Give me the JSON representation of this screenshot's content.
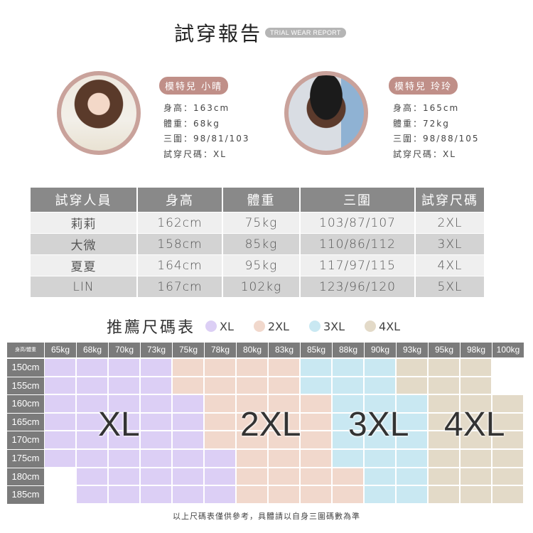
{
  "title": "試穿報告",
  "title_badge": "TRIAL WEAR REPORT",
  "models": [
    {
      "name": "模特兒 小晴",
      "height": "身高：163cm",
      "weight": "體重：68kg",
      "measurements": "三圍：98/81/103",
      "size": "試穿尺碼：XL"
    },
    {
      "name": "模特兒 玲玲",
      "height": "身高：165cm",
      "weight": "體重：72kg",
      "measurements": "三圍：98/88/105",
      "size": "試穿尺碼：XL"
    }
  ],
  "trial_table": {
    "headers": [
      "試穿人員",
      "身高",
      "體重",
      "三圍",
      "試穿尺碼"
    ],
    "rows": [
      [
        "莉莉",
        "162cm",
        "75kg",
        "103/87/107",
        "2XL"
      ],
      [
        "大微",
        "158cm",
        "85kg",
        "110/86/112",
        "3XL"
      ],
      [
        "夏夏",
        "164cm",
        "95kg",
        "117/97/115",
        "4XL"
      ],
      [
        "LIN",
        "167cm",
        "102kg",
        "123/96/120",
        "5XL"
      ]
    ]
  },
  "size_chart": {
    "title": "推薦尺碼表",
    "legend": [
      {
        "size": "XL",
        "color": "#dccff5"
      },
      {
        "size": "2XL",
        "color": "#f1d8cc"
      },
      {
        "size": "3XL",
        "color": "#c9e8f2"
      },
      {
        "size": "4XL",
        "color": "#e3dac8"
      }
    ],
    "corner_label": "身高/體重",
    "weights": [
      "65kg",
      "68kg",
      "70kg",
      "73kg",
      "75kg",
      "78kg",
      "80kg",
      "83kg",
      "85kg",
      "88kg",
      "90kg",
      "93kg",
      "95kg",
      "98kg",
      "100kg"
    ],
    "heights": [
      "150cm",
      "155cm",
      "160cm",
      "165cm",
      "170cm",
      "175cm",
      "180cm",
      "185cm"
    ],
    "cells": [
      [
        "XL",
        "XL",
        "XL",
        "XL",
        "2XL",
        "2XL",
        "2XL",
        "2XL",
        "3XL",
        "3XL",
        "3XL",
        "4XL",
        "4XL",
        "4XL",
        ""
      ],
      [
        "XL",
        "XL",
        "XL",
        "XL",
        "2XL",
        "2XL",
        "2XL",
        "2XL",
        "3XL",
        "3XL",
        "3XL",
        "4XL",
        "4XL",
        "4XL",
        ""
      ],
      [
        "XL",
        "XL",
        "XL",
        "XL",
        "XL",
        "2XL",
        "2XL",
        "2XL",
        "2XL",
        "3XL",
        "3XL",
        "3XL",
        "4XL",
        "4XL",
        "4XL"
      ],
      [
        "XL",
        "XL",
        "XL",
        "XL",
        "XL",
        "2XL",
        "2XL",
        "2XL",
        "2XL",
        "3XL",
        "3XL",
        "3XL",
        "4XL",
        "4XL",
        "4XL"
      ],
      [
        "XL",
        "XL",
        "XL",
        "XL",
        "XL",
        "2XL",
        "2XL",
        "2XL",
        "2XL",
        "3XL",
        "3XL",
        "3XL",
        "4XL",
        "4XL",
        "4XL"
      ],
      [
        "XL",
        "XL",
        "XL",
        "XL",
        "XL",
        "XL",
        "2XL",
        "2XL",
        "2XL",
        "3XL",
        "3XL",
        "3XL",
        "4XL",
        "4XL",
        "4XL"
      ],
      [
        "",
        "XL",
        "XL",
        "XL",
        "XL",
        "XL",
        "2XL",
        "2XL",
        "2XL",
        "2XL",
        "3XL",
        "3XL",
        "4XL",
        "4XL",
        "4XL"
      ],
      [
        "",
        "XL",
        "XL",
        "XL",
        "XL",
        "XL",
        "2XL",
        "2XL",
        "2XL",
        "2XL",
        "3XL",
        "3XL",
        "4XL",
        "4XL",
        "4XL"
      ]
    ],
    "zone_labels": [
      "XL",
      "2XL",
      "3XL",
      "4XL"
    ]
  },
  "footnote": "以上尺碼表僅供參考，具體請以自身三圍碼數為準"
}
